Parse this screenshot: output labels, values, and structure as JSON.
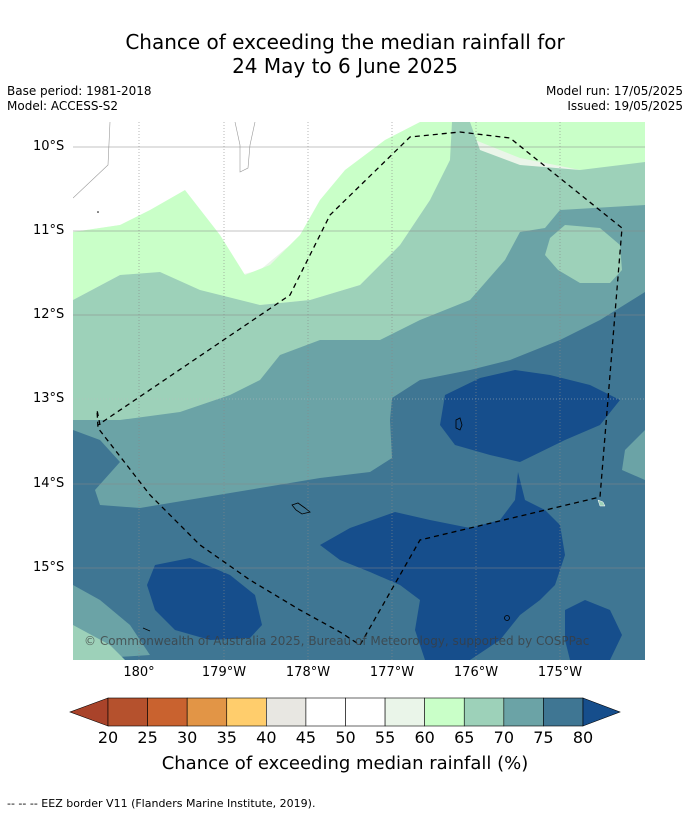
{
  "title_line1": "Chance of exceeding the median rainfall for",
  "title_line2": "24 May to 6 June 2025",
  "base_period": "Base period: 1981-2018",
  "model": "Model: ACCESS-S2",
  "model_run": "Model run: 17/05/2025",
  "issued": "Issued: 19/05/2025",
  "copyright": "© Commonwealth of Australia 2025, Bureau of Meteorology, supported by COSPPac",
  "lat_labels": [
    "10°S",
    "11°S",
    "12°S",
    "13°S",
    "14°S",
    "15°S"
  ],
  "lon_labels": [
    "180°",
    "179°W",
    "178°W",
    "177°W",
    "176°W",
    "175°W"
  ],
  "colorbar": {
    "ticks": [
      "20",
      "25",
      "30",
      "35",
      "40",
      "45",
      "50",
      "55",
      "60",
      "65",
      "70",
      "75",
      "80"
    ],
    "colors": [
      "#a9432a",
      "#b5512d",
      "#c9622f",
      "#e29546",
      "#ffcd6c",
      "#e8e7e2",
      "#ffffff",
      "#ffffff",
      "#eaf5e9",
      "#c9ffc8",
      "#9dd1b9",
      "#6ba3a6",
      "#3f7693",
      "#164e8c"
    ],
    "label": "Chance of exceeding median rainfall (%)"
  },
  "footnote": "-- -- -- EEZ border V11 (Flanders Marine Institute, 2019)."
}
